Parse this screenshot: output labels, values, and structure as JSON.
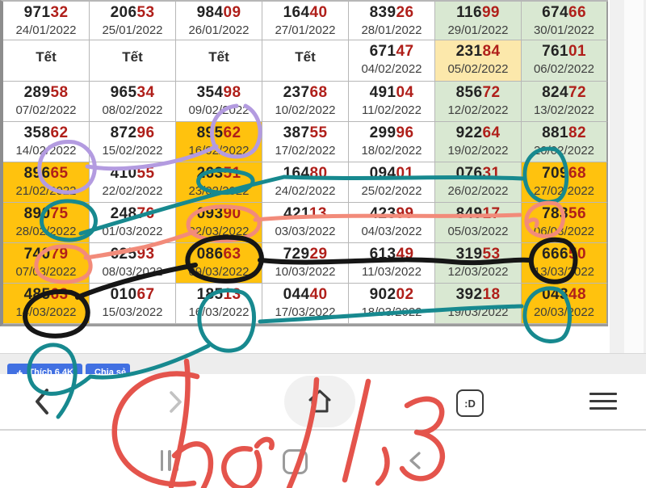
{
  "calendar": {
    "tet_label": "Tết",
    "colors": {
      "highlight_orange": "#ffc20e",
      "soft_green": "#d9e8d2",
      "soft_yellow": "#fce8ab",
      "digit_red": "#b01f1a",
      "digit_black": "#232323"
    },
    "rows": [
      [
        {
          "b": "971",
          "r": "32",
          "date": "24/01/2022",
          "bg": "w"
        },
        {
          "b": "206",
          "r": "53",
          "date": "25/01/2022",
          "bg": "w"
        },
        {
          "b": "984",
          "r": "09",
          "date": "26/01/2022",
          "bg": "w"
        },
        {
          "b": "164",
          "r": "40",
          "date": "27/01/2022",
          "bg": "w"
        },
        {
          "b": "839",
          "r": "26",
          "date": "28/01/2022",
          "bg": "w"
        },
        {
          "b": "116",
          "r": "99",
          "date": "29/01/2022",
          "bg": "g"
        },
        {
          "b": "674",
          "r": "66",
          "date": "30/01/2022",
          "bg": "g"
        }
      ],
      [
        {
          "tet": true,
          "bg": "w"
        },
        {
          "tet": true,
          "bg": "w"
        },
        {
          "tet": true,
          "bg": "w"
        },
        {
          "tet": true,
          "bg": "w"
        },
        {
          "b": "671",
          "r": "47",
          "date": "04/02/2022",
          "bg": "w"
        },
        {
          "b": "231",
          "r": "84",
          "date": "05/02/2022",
          "bg": "y"
        },
        {
          "b": "761",
          "r": "01",
          "date": "06/02/2022",
          "bg": "g"
        }
      ],
      [
        {
          "b": "289",
          "r": "58",
          "date": "07/02/2022",
          "bg": "w"
        },
        {
          "b": "965",
          "r": "34",
          "date": "08/02/2022",
          "bg": "w"
        },
        {
          "b": "354",
          "r": "98",
          "date": "09/02/2022",
          "bg": "w"
        },
        {
          "b": "237",
          "r": "68",
          "date": "10/02/2022",
          "bg": "w"
        },
        {
          "b": "491",
          "r": "04",
          "date": "11/02/2022",
          "bg": "w"
        },
        {
          "b": "856",
          "r": "72",
          "date": "12/02/2022",
          "bg": "g"
        },
        {
          "b": "824",
          "r": "72",
          "date": "13/02/2022",
          "bg": "g"
        }
      ],
      [
        {
          "b": "358",
          "r": "62",
          "date": "14/02/2022",
          "bg": "w"
        },
        {
          "b": "872",
          "r": "96",
          "date": "15/02/2022",
          "bg": "w"
        },
        {
          "b": "895",
          "r": "62",
          "date": "16/02/2022",
          "bg": "o"
        },
        {
          "b": "387",
          "r": "55",
          "date": "17/02/2022",
          "bg": "w"
        },
        {
          "b": "299",
          "r": "96",
          "date": "18/02/2022",
          "bg": "w"
        },
        {
          "b": "922",
          "r": "64",
          "date": "19/02/2022",
          "bg": "g"
        },
        {
          "b": "881",
          "r": "82",
          "date": "20/02/2022",
          "bg": "g"
        }
      ],
      [
        {
          "b": "896",
          "r": "65",
          "date": "21/02/2022",
          "bg": "o"
        },
        {
          "b": "410",
          "r": "55",
          "date": "22/02/2022",
          "bg": "w"
        },
        {
          "b": "263",
          "r": "51",
          "date": "23/02/2022",
          "bg": "o"
        },
        {
          "b": "164",
          "r": "80",
          "date": "24/02/2022",
          "bg": "w"
        },
        {
          "b": "094",
          "r": "01",
          "date": "25/02/2022",
          "bg": "w"
        },
        {
          "b": "076",
          "r": "31",
          "date": "26/02/2022",
          "bg": "g"
        },
        {
          "b": "709",
          "r": "68",
          "date": "27/02/2022",
          "bg": "o"
        }
      ],
      [
        {
          "b": "890",
          "r": "75",
          "date": "28/02/2022",
          "bg": "o"
        },
        {
          "b": "248",
          "r": "76",
          "date": "01/03/2022",
          "bg": "w"
        },
        {
          "b": "093",
          "r": "90",
          "date": "02/03/2022",
          "bg": "o"
        },
        {
          "b": "421",
          "r": "13",
          "date": "03/03/2022",
          "bg": "w"
        },
        {
          "b": "423",
          "r": "99",
          "date": "04/03/2022",
          "bg": "w"
        },
        {
          "b": "849",
          "r": "17",
          "date": "05/03/2022",
          "bg": "g"
        },
        {
          "b": "783",
          "r": "56",
          "date": "06/03/2022",
          "bg": "o"
        }
      ],
      [
        {
          "b": "740",
          "r": "79",
          "date": "07/03/2022",
          "bg": "o"
        },
        {
          "b": "625",
          "r": "93",
          "date": "08/03/2022",
          "bg": "w"
        },
        {
          "b": "086",
          "r": "63",
          "date": "09/03/2022",
          "bg": "o"
        },
        {
          "b": "729",
          "r": "29",
          "date": "10/03/2022",
          "bg": "w"
        },
        {
          "b": "613",
          "r": "49",
          "date": "11/03/2022",
          "bg": "w"
        },
        {
          "b": "319",
          "r": "53",
          "date": "12/03/2022",
          "bg": "g"
        },
        {
          "b": "666",
          "r": "50",
          "date": "13/03/2022",
          "bg": "o"
        }
      ],
      [
        {
          "b": "485",
          "r": "63",
          "date": "14/03/2022",
          "bg": "o"
        },
        {
          "b": "010",
          "r": "67",
          "date": "15/03/2022",
          "bg": "w"
        },
        {
          "b": "185",
          "r": "13",
          "date": "16/03/2022",
          "bg": "w"
        },
        {
          "b": "044",
          "r": "40",
          "date": "17/03/2022",
          "bg": "w"
        },
        {
          "b": "902",
          "r": "02",
          "date": "18/03/2022",
          "bg": "w"
        },
        {
          "b": "392",
          "r": "18",
          "date": "19/03/2022",
          "bg": "g"
        },
        {
          "b": "043",
          "r": "48",
          "date": "20/03/2022",
          "bg": "o"
        }
      ]
    ]
  },
  "like_bar": {
    "like_label": "Thích 6,4K",
    "share_label": "Chia sẻ",
    "button_color": "#4170e2"
  },
  "browser_toolbar": {
    "tab_icon_label": ":D"
  },
  "handwriting": {
    "text": "Chơi 1,3",
    "color": "#e4544c"
  },
  "annotation_colors": {
    "teal": "#17898f",
    "purple": "#b39be0",
    "salmon": "#f28b7a",
    "black": "#161616"
  }
}
